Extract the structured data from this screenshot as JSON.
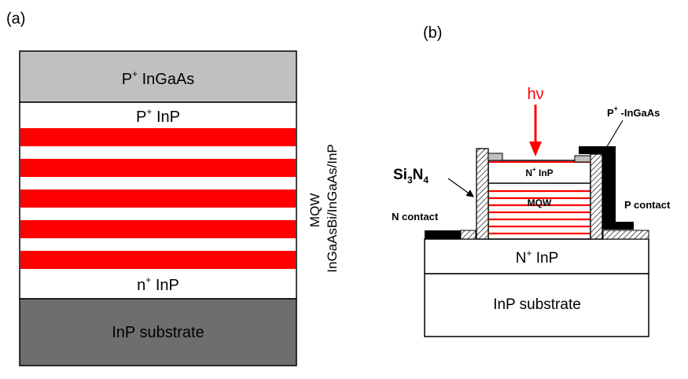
{
  "panel_a": {
    "label": "(a)",
    "layers": {
      "cap": {
        "base": "P",
        "sup": "+",
        "rest": " InGaAs"
      },
      "upper": {
        "base": "P",
        "sup": "+",
        "rest": " InP"
      },
      "lower": {
        "base": "n",
        "sup": "+",
        "rest": " InP"
      },
      "substrate": "InP substrate"
    },
    "side_label_line1": "MQW",
    "side_label_line2": "InGaAsBi/InGaAs/InP",
    "red_stripe_count": 5
  },
  "panel_b": {
    "label": "(b)",
    "photon": "hν",
    "p_contact_layer": {
      "sup": "+",
      "base": "P",
      "rest": " -InGaAs"
    },
    "passivation": {
      "base": "Si",
      "sub1": "3",
      "mid": "N",
      "sub2": "4"
    },
    "n_contact": "N contact",
    "p_contact": "P contact",
    "mesa_top": {
      "base": "N",
      "sup": "+",
      "rest": " InP"
    },
    "mqw": "MQW",
    "n_layer": {
      "base": "N",
      "sup": "+",
      "rest": " InP"
    },
    "substrate": "InP substrate",
    "mqw_line_count": 7
  },
  "colors": {
    "cap": "#c0c0c0",
    "substrate_a": "#6e6e6e",
    "stripe": "#ff0000",
    "photon": "#ff0000",
    "contact": "#000000"
  }
}
